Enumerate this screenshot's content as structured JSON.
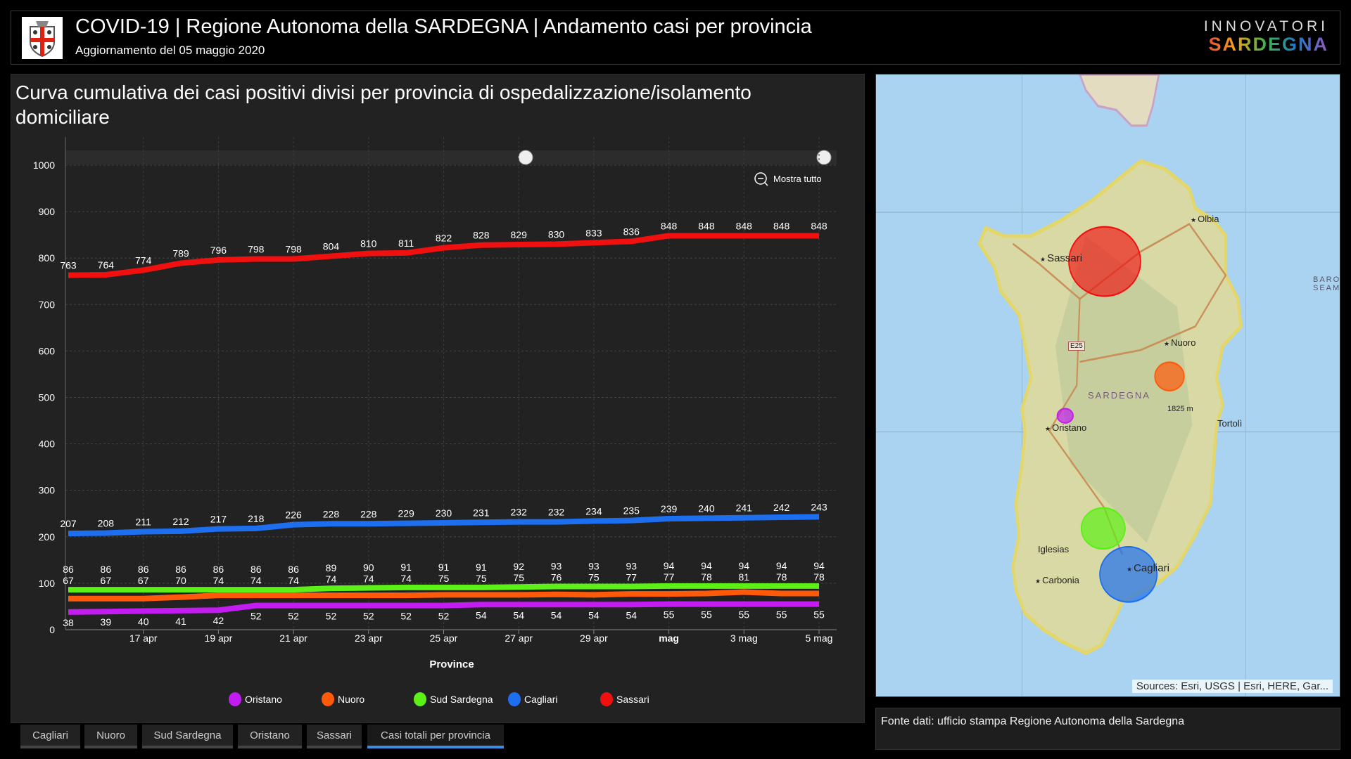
{
  "header": {
    "title": "COVID-19 | Regione Autonoma della SARDEGNA | Andamento casi per provincia",
    "subtitle": "Aggiornamento del 05 maggio 2020",
    "brand_top": "INNOVATORI",
    "brand_bottom": "SARDEGNA",
    "logo_icon": "sardinia-coat-of-arms"
  },
  "chart": {
    "zoom_label": "Mostra tutto"
  },
  "chart_data": {
    "type": "line",
    "title": "Curva cumulativa dei casi positivi divisi per provincia di ospedalizzazione/isolamento domiciliare",
    "xlabel": "Province",
    "ylabel": "",
    "ylim": [
      0,
      1000
    ],
    "yticks": [
      "0",
      "100",
      "200",
      "300",
      "400",
      "500",
      "600",
      "700",
      "800",
      "900",
      "1000"
    ],
    "x": [
      "15 apr",
      "16 apr",
      "17 apr",
      "18 apr",
      "19 apr",
      "20 apr",
      "21 apr",
      "22 apr",
      "23 apr",
      "24 apr",
      "25 apr",
      "26 apr",
      "27 apr",
      "28 apr",
      "29 apr",
      "30 apr",
      "1 mag",
      "2 mag",
      "3 mag",
      "4 mag",
      "5 mag"
    ],
    "xtick_labels": [
      "17 apr",
      "19 apr",
      "21 apr",
      "23 apr",
      "25 apr",
      "27 apr",
      "29 apr",
      "mag",
      "3 mag",
      "5 mag"
    ],
    "grid": true,
    "legend": "bottom",
    "series": [
      {
        "name": "Oristano",
        "color": "#c21cf0",
        "values": [
          38,
          39,
          40,
          41,
          42,
          52,
          52,
          52,
          52,
          52,
          52,
          54,
          54,
          54,
          54,
          54,
          55,
          55,
          55,
          55,
          55
        ]
      },
      {
        "name": "Nuoro",
        "color": "#ff5a0a",
        "values": [
          67,
          67,
          67,
          70,
          74,
          74,
          74,
          74,
          74,
          74,
          75,
          75,
          75,
          76,
          75,
          77,
          77,
          78,
          81,
          78,
          78
        ]
      },
      {
        "name": "Sud Sardegna",
        "color": "#5cf016",
        "values": [
          86,
          86,
          86,
          86,
          86,
          86,
          86,
          89,
          90,
          91,
          91,
          91,
          92,
          93,
          93,
          93,
          94,
          94,
          94,
          94,
          94
        ]
      },
      {
        "name": "Cagliari",
        "color": "#1e6ff0",
        "values": [
          207,
          208,
          211,
          212,
          217,
          218,
          226,
          228,
          228,
          229,
          230,
          231,
          232,
          232,
          234,
          235,
          239,
          240,
          241,
          242,
          243
        ]
      },
      {
        "name": "Sassari",
        "color": "#f01010",
        "values": [
          763,
          764,
          774,
          789,
          796,
          798,
          798,
          804,
          810,
          811,
          822,
          828,
          829,
          830,
          833,
          836,
          848,
          848,
          848,
          848,
          848
        ]
      }
    ]
  },
  "tabs": [
    {
      "label": "Cagliari"
    },
    {
      "label": "Nuoro"
    },
    {
      "label": "Sud Sardegna"
    },
    {
      "label": "Oristano"
    },
    {
      "label": "Sassari"
    },
    {
      "label": "Casi totali per provincia",
      "active": true
    }
  ],
  "map": {
    "labels": {
      "olbia": "Olbia",
      "sassari": "Sassari",
      "nuoro": "Nuoro",
      "sardegna": "SARDEGNA",
      "peak": "1825 m",
      "tortoli": "Tortolì",
      "oristano": "Oristano",
      "iglesias": "Iglesias",
      "carbonia": "Carbonia",
      "cagliari": "Cagliari",
      "road": "E25",
      "seamount": "BARO SEAM"
    },
    "attribution": "Sources: Esri, USGS | Esri, HERE, Gar..."
  },
  "source": {
    "text": "Fonte dati: ufficio stampa Regione Autonoma della Sardegna"
  }
}
